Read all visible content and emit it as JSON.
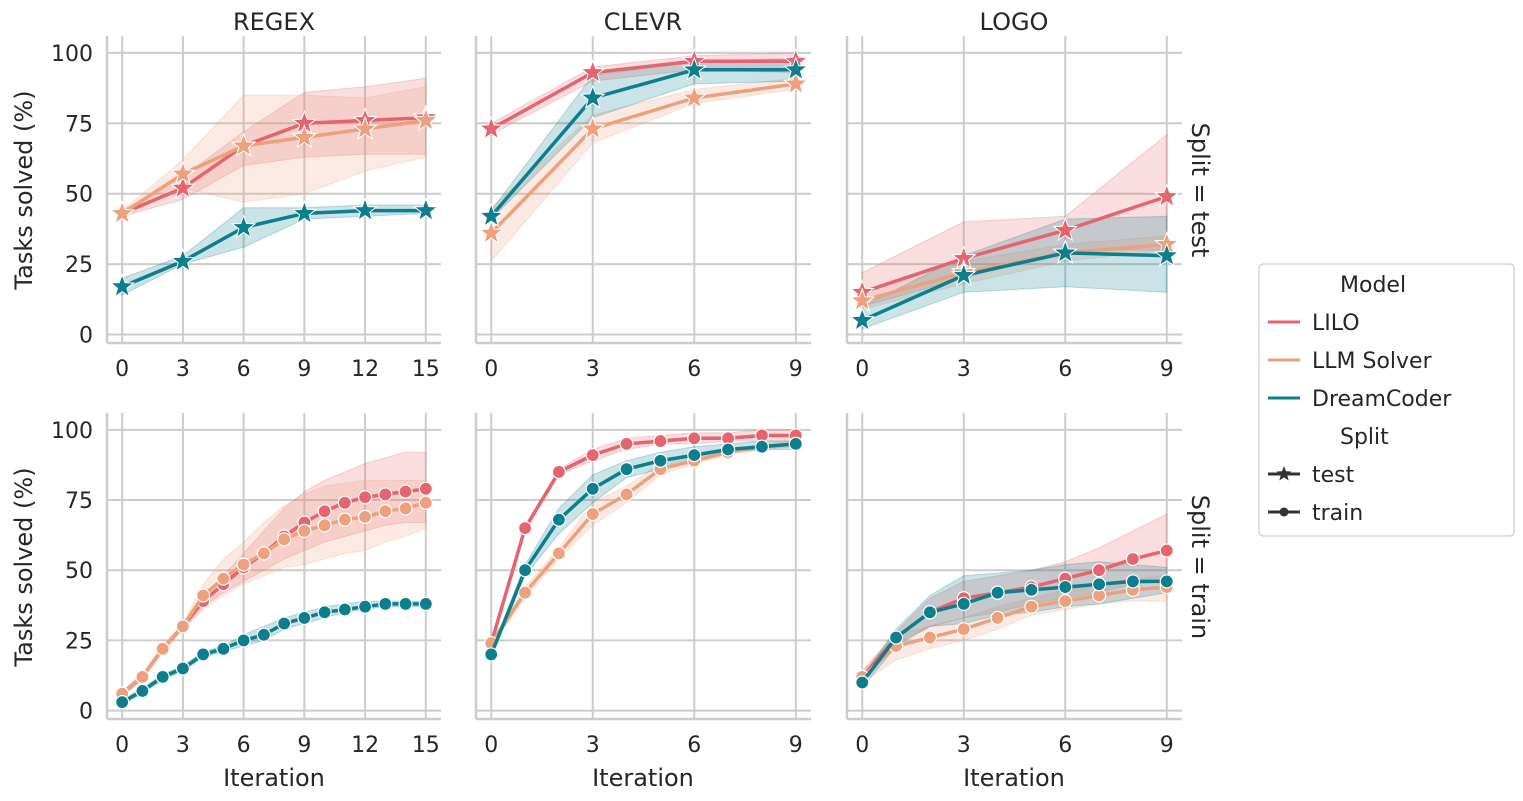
{
  "colors": {
    "LILO": "#e5646e",
    "LLM Solver": "#eda07e",
    "DreamCoder": "#0c7f8c",
    "grid": "#cccccc",
    "axis": "#cccccc"
  },
  "legend": {
    "model_title": "Model",
    "models": [
      "LILO",
      "LLM Solver",
      "DreamCoder"
    ],
    "split_title": "Split",
    "splits": [
      "test",
      "train"
    ],
    "placement": "right"
  },
  "row_labels": [
    "Split = test",
    "Split = train"
  ],
  "ylabel": "Tasks solved (%)",
  "xlabel": "Iteration",
  "chart_data": [
    {
      "type": "line",
      "title": "REGEX",
      "split": "test",
      "xticks": [
        0,
        3,
        6,
        9,
        12,
        15
      ],
      "xlim": [
        -0.75,
        15.75
      ],
      "yticks": [
        0,
        25,
        50,
        75,
        100
      ],
      "ylim": [
        -3,
        106
      ],
      "series": [
        {
          "name": "LILO",
          "x": [
            0,
            3,
            6,
            9,
            12,
            15
          ],
          "y": [
            43,
            52,
            67,
            75,
            76,
            77
          ],
          "lo": [
            42,
            48,
            60,
            63,
            64,
            64
          ],
          "hi": [
            44,
            56,
            72,
            86,
            88,
            91
          ]
        },
        {
          "name": "LLM Solver",
          "x": [
            0,
            3,
            6,
            9,
            12,
            15
          ],
          "y": [
            43,
            57,
            67,
            70,
            73,
            76
          ],
          "lo": [
            42,
            52,
            47,
            50,
            58,
            63
          ],
          "hi": [
            44,
            62,
            85,
            85,
            84,
            88
          ]
        },
        {
          "name": "DreamCoder",
          "x": [
            0,
            3,
            6,
            9,
            12,
            15
          ],
          "y": [
            17,
            26,
            38,
            43,
            44,
            44
          ],
          "lo": [
            14,
            25,
            31,
            41,
            42,
            43
          ],
          "hi": [
            20,
            28,
            45,
            45,
            46,
            46
          ]
        }
      ]
    },
    {
      "type": "line",
      "title": "CLEVR",
      "split": "test",
      "xticks": [
        0,
        3,
        6,
        9
      ],
      "xlim": [
        -0.45,
        9.45
      ],
      "yticks": [
        0,
        25,
        50,
        75,
        100
      ],
      "ylim": [
        -3,
        106
      ],
      "series": [
        {
          "name": "LILO",
          "x": [
            0,
            3,
            6,
            9
          ],
          "y": [
            73,
            93,
            97,
            97
          ],
          "lo": [
            71,
            90,
            94,
            93
          ],
          "hi": [
            75,
            95,
            99,
            100
          ]
        },
        {
          "name": "LLM Solver",
          "x": [
            0,
            3,
            6,
            9
          ],
          "y": [
            36,
            73,
            84,
            89
          ],
          "lo": [
            26,
            68,
            82,
            87
          ],
          "hi": [
            45,
            78,
            87,
            91
          ]
        },
        {
          "name": "DreamCoder",
          "x": [
            0,
            3,
            6,
            9
          ],
          "y": [
            42,
            84,
            94,
            94
          ],
          "lo": [
            41,
            77,
            89,
            90
          ],
          "hi": [
            44,
            92,
            97,
            98
          ]
        }
      ]
    },
    {
      "type": "line",
      "title": "LOGO",
      "split": "test",
      "xticks": [
        0,
        3,
        6,
        9
      ],
      "xlim": [
        -0.45,
        9.45
      ],
      "yticks": [
        0,
        25,
        50,
        75,
        100
      ],
      "ylim": [
        -3,
        106
      ],
      "series": [
        {
          "name": "LILO",
          "x": [
            0,
            3,
            6,
            9
          ],
          "y": [
            15,
            27,
            37,
            49
          ],
          "lo": [
            10,
            20,
            30,
            30
          ],
          "hi": [
            22,
            40,
            42,
            71
          ]
        },
        {
          "name": "LLM Solver",
          "x": [
            0,
            3,
            6,
            9
          ],
          "y": [
            12,
            22,
            29,
            32
          ],
          "lo": [
            9,
            18,
            26,
            30
          ],
          "hi": [
            15,
            26,
            32,
            35
          ]
        },
        {
          "name": "DreamCoder",
          "x": [
            0,
            3,
            6,
            9
          ],
          "y": [
            5,
            21,
            29,
            28
          ],
          "lo": [
            2,
            15,
            17,
            15
          ],
          "hi": [
            10,
            28,
            41,
            42
          ]
        }
      ]
    },
    {
      "type": "line",
      "title": "",
      "split": "train",
      "xticks": [
        0,
        3,
        6,
        9,
        12,
        15
      ],
      "xlim": [
        -0.75,
        15.75
      ],
      "yticks": [
        0,
        25,
        50,
        75,
        100
      ],
      "ylim": [
        -3,
        106
      ],
      "series": [
        {
          "name": "LILO",
          "x": [
            0,
            1,
            2,
            3,
            4,
            5,
            6,
            7,
            8,
            9,
            10,
            11,
            12,
            13,
            14,
            15
          ],
          "y": [
            6,
            12,
            22,
            30,
            39,
            45,
            51,
            56,
            62,
            67,
            71,
            74,
            76,
            77,
            78,
            79
          ],
          "lo": [
            5,
            11,
            21,
            29,
            37,
            42,
            46,
            50,
            54,
            57,
            60,
            62,
            64,
            66,
            67,
            67
          ],
          "hi": [
            7,
            13,
            23,
            31,
            41,
            48,
            56,
            64,
            72,
            78,
            82,
            85,
            88,
            90,
            92,
            92
          ]
        },
        {
          "name": "LLM Solver",
          "x": [
            0,
            1,
            2,
            3,
            4,
            5,
            6,
            7,
            8,
            9,
            10,
            11,
            12,
            13,
            14,
            15
          ],
          "y": [
            6,
            12,
            22,
            30,
            41,
            47,
            52,
            56,
            61,
            64,
            66,
            68,
            69,
            71,
            72,
            74
          ],
          "lo": [
            5,
            11,
            21,
            29,
            36,
            41,
            45,
            48,
            51,
            52,
            54,
            56,
            57,
            60,
            62,
            65
          ],
          "hi": [
            7,
            13,
            23,
            31,
            45,
            54,
            60,
            67,
            73,
            77,
            80,
            81,
            82,
            82,
            82,
            82
          ]
        },
        {
          "name": "DreamCoder",
          "x": [
            0,
            1,
            2,
            3,
            4,
            5,
            6,
            7,
            8,
            9,
            10,
            11,
            12,
            13,
            14,
            15
          ],
          "y": [
            3,
            7,
            12,
            15,
            20,
            22,
            25,
            27,
            31,
            33,
            35,
            36,
            37,
            38,
            38,
            38
          ],
          "lo": [
            2,
            6,
            11,
            14,
            19,
            21,
            23,
            25,
            29,
            31,
            33,
            35,
            36,
            37,
            37,
            37
          ],
          "hi": [
            4,
            8,
            13,
            16,
            21,
            23,
            27,
            30,
            33,
            35,
            37,
            38,
            39,
            39,
            39,
            39
          ]
        }
      ]
    },
    {
      "type": "line",
      "title": "",
      "split": "train",
      "xticks": [
        0,
        3,
        6,
        9
      ],
      "xlim": [
        -0.45,
        9.45
      ],
      "yticks": [
        0,
        25,
        50,
        75,
        100
      ],
      "ylim": [
        -3,
        106
      ],
      "series": [
        {
          "name": "LILO",
          "x": [
            0,
            1,
            2,
            3,
            4,
            5,
            6,
            7,
            8,
            9
          ],
          "y": [
            24,
            65,
            85,
            91,
            95,
            96,
            97,
            97,
            98,
            98
          ],
          "lo": [
            23,
            64,
            84,
            89,
            93,
            95,
            95,
            96,
            96,
            96
          ],
          "hi": [
            25,
            66,
            86,
            93,
            97,
            98,
            99,
            99,
            100,
            100
          ]
        },
        {
          "name": "LLM Solver",
          "x": [
            0,
            1,
            2,
            3,
            4,
            5,
            6,
            7,
            8,
            9
          ],
          "y": [
            24,
            42,
            56,
            70,
            77,
            86,
            89,
            92,
            94,
            95
          ],
          "lo": [
            23,
            40,
            54,
            66,
            74,
            84,
            88,
            91,
            93,
            94
          ],
          "hi": [
            25,
            44,
            58,
            74,
            80,
            88,
            91,
            93,
            95,
            96
          ]
        },
        {
          "name": "DreamCoder",
          "x": [
            0,
            1,
            2,
            3,
            4,
            5,
            6,
            7,
            8,
            9
          ],
          "y": [
            20,
            50,
            68,
            79,
            86,
            89,
            91,
            93,
            94,
            95
          ],
          "lo": [
            19,
            48,
            63,
            74,
            83,
            86,
            89,
            92,
            93,
            93
          ],
          "hi": [
            21,
            52,
            72,
            84,
            89,
            92,
            94,
            95,
            96,
            96
          ]
        }
      ]
    },
    {
      "type": "line",
      "title": "",
      "split": "train",
      "xticks": [
        0,
        3,
        6,
        9
      ],
      "xlim": [
        -0.45,
        9.45
      ],
      "yticks": [
        0,
        25,
        50,
        75,
        100
      ],
      "ylim": [
        -3,
        106
      ],
      "series": [
        {
          "name": "LILO",
          "x": [
            0,
            1,
            2,
            3,
            4,
            5,
            6,
            7,
            8,
            9
          ],
          "y": [
            12,
            26,
            35,
            40,
            42,
            44,
            47,
            50,
            54,
            57
          ],
          "lo": [
            10,
            24,
            30,
            33,
            35,
            38,
            40,
            42,
            45,
            46
          ],
          "hi": [
            14,
            28,
            40,
            46,
            48,
            50,
            53,
            58,
            64,
            70
          ]
        },
        {
          "name": "LLM Solver",
          "x": [
            0,
            1,
            2,
            3,
            4,
            5,
            6,
            7,
            8,
            9
          ],
          "y": [
            12,
            23,
            26,
            29,
            33,
            37,
            39,
            41,
            43,
            44
          ],
          "lo": [
            10,
            18,
            22,
            25,
            29,
            34,
            36,
            38,
            39,
            39
          ],
          "hi": [
            14,
            27,
            30,
            33,
            37,
            40,
            43,
            45,
            47,
            48
          ]
        },
        {
          "name": "DreamCoder",
          "x": [
            0,
            1,
            2,
            3,
            4,
            5,
            6,
            7,
            8,
            9
          ],
          "y": [
            10,
            26,
            35,
            38,
            42,
            43,
            44,
            45,
            46,
            46
          ],
          "lo": [
            8,
            23,
            30,
            31,
            34,
            35,
            37,
            38,
            40,
            42
          ],
          "hi": [
            12,
            29,
            41,
            48,
            49,
            50,
            52,
            53,
            52,
            51
          ]
        }
      ]
    }
  ]
}
